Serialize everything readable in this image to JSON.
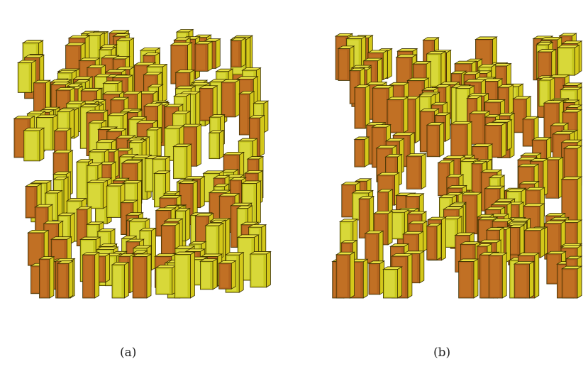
{
  "figure": {
    "panels": [
      {
        "id": "a",
        "caption": "(a)",
        "style": "mixed-yellow-and-brown-prisms"
      },
      {
        "id": "b",
        "caption": "(b)",
        "style": "brown-prisms"
      }
    ],
    "colors": {
      "yellow_face": "#c8c81e",
      "yellow_light": "#e6e650",
      "brown_face": "#b4641e",
      "brown_light": "#cc7a2a",
      "outline": "#3a3000",
      "background": "#ffffff"
    }
  }
}
